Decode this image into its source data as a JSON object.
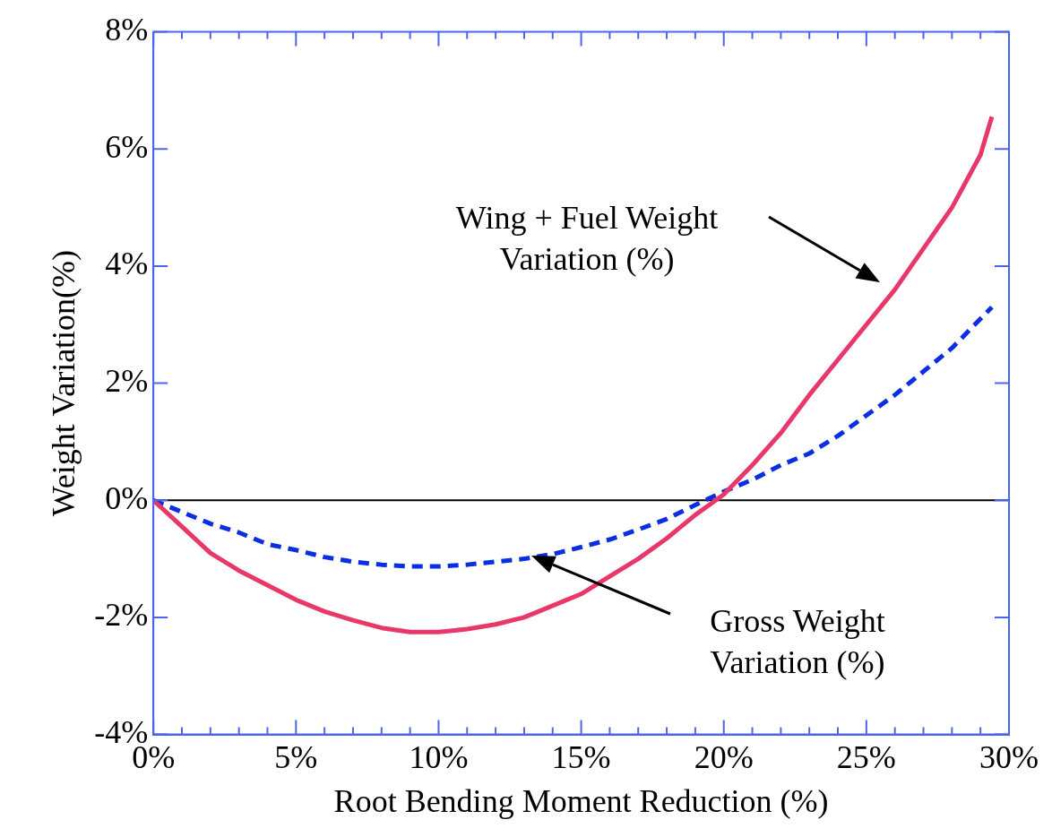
{
  "chart_data": {
    "type": "line",
    "xlabel": "Root Bending Moment Reduction (%)",
    "ylabel": "Weight Variation(%)",
    "x": [
      0,
      1,
      2,
      3,
      4,
      5,
      6,
      7,
      8,
      9,
      10,
      11,
      12,
      13,
      14,
      15,
      16,
      17,
      18,
      19,
      20,
      21,
      22,
      23,
      24,
      25,
      26,
      27,
      28,
      29,
      29.4
    ],
    "series": [
      {
        "color": "#e8386a",
        "line_style": "solid",
        "values": [
          0,
          -0.45,
          -0.9,
          -1.2,
          -1.45,
          -1.7,
          -1.9,
          -2.05,
          -2.18,
          -2.25,
          -2.25,
          -2.2,
          -2.12,
          -2.0,
          -1.8,
          -1.6,
          -1.3,
          -1.0,
          -0.65,
          -0.25,
          0.1,
          0.6,
          1.15,
          1.8,
          2.4,
          3.0,
          3.6,
          4.3,
          5.0,
          5.9,
          6.55
        ]
      },
      {
        "color": "#0a2ee0",
        "line_style": "dashed",
        "values": [
          0,
          -0.2,
          -0.4,
          -0.55,
          -0.75,
          -0.85,
          -0.97,
          -1.05,
          -1.1,
          -1.13,
          -1.13,
          -1.1,
          -1.05,
          -1.0,
          -0.92,
          -0.8,
          -0.67,
          -0.5,
          -0.32,
          -0.08,
          0.15,
          0.35,
          0.6,
          0.8,
          1.1,
          1.45,
          1.8,
          2.2,
          2.6,
          3.1,
          3.3
        ]
      }
    ],
    "xlim": [
      0,
      30
    ],
    "xticks": [
      {
        "value": 0,
        "label": "0%"
      },
      {
        "value": 1,
        "label": null
      },
      {
        "value": 2,
        "label": null
      },
      {
        "value": 3,
        "label": null
      },
      {
        "value": 4,
        "label": null
      },
      {
        "value": 5,
        "label": "5%"
      },
      {
        "value": 6,
        "label": null
      },
      {
        "value": 7,
        "label": null
      },
      {
        "value": 8,
        "label": null
      },
      {
        "value": 9,
        "label": null
      },
      {
        "value": 10,
        "label": "10%"
      },
      {
        "value": 11,
        "label": null
      },
      {
        "value": 12,
        "label": null
      },
      {
        "value": 13,
        "label": null
      },
      {
        "value": 14,
        "label": null
      },
      {
        "value": 15,
        "label": "15%"
      },
      {
        "value": 16,
        "label": null
      },
      {
        "value": 17,
        "label": null
      },
      {
        "value": 18,
        "label": null
      },
      {
        "value": 19,
        "label": null
      },
      {
        "value": 20,
        "label": "20%"
      },
      {
        "value": 21,
        "label": null
      },
      {
        "value": 22,
        "label": null
      },
      {
        "value": 23,
        "label": null
      },
      {
        "value": 24,
        "label": null
      },
      {
        "value": 25,
        "label": "25%"
      },
      {
        "value": 26,
        "label": null
      },
      {
        "value": 27,
        "label": null
      },
      {
        "value": 28,
        "label": null
      },
      {
        "value": 29,
        "label": null
      },
      {
        "value": 30,
        "label": "30%"
      }
    ],
    "ylim": [
      -4,
      8
    ],
    "yticks": [
      {
        "value": -4,
        "label": "-4%"
      },
      {
        "value": -2,
        "label": "-2%"
      },
      {
        "value": 0,
        "label": "0%"
      },
      {
        "value": 2,
        "label": "2%"
      },
      {
        "value": 4,
        "label": "4%"
      },
      {
        "value": 6,
        "label": "6%"
      },
      {
        "value": 8,
        "label": "8%"
      }
    ],
    "ref_lines": [
      {
        "axis": "y",
        "value": 0,
        "color": "#000000"
      }
    ],
    "annotations": [
      "Wing + Fuel Weight\nVariation (%)",
      "Gross Weight\nVariation (%)"
    ],
    "grid": false,
    "legend": false,
    "marker": "none"
  }
}
